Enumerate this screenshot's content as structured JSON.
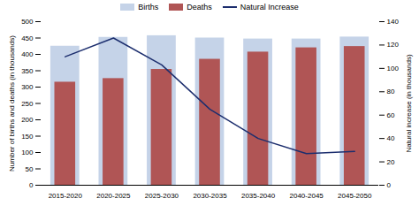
{
  "chart_data": {
    "type": "bar",
    "categories": [
      "2015-2020",
      "2020-2025",
      "2025-2030",
      "2030-2035",
      "2035-2040",
      "2040-2045",
      "2045-2050"
    ],
    "series": [
      {
        "name": "Births",
        "type": "bar",
        "color": "#c5d3e8",
        "values": [
          425,
          452,
          457,
          450,
          447,
          447,
          453
        ]
      },
      {
        "name": "Deaths",
        "type": "bar",
        "color": "#b05555",
        "values": [
          315,
          326,
          354,
          385,
          407,
          420,
          424
        ]
      },
      {
        "name": "Natural Increase",
        "type": "line",
        "axis": "y2",
        "color": "#1c2e6e",
        "values": [
          110,
          126,
          103,
          65,
          40,
          27,
          29
        ]
      }
    ],
    "ylabel": "Number of births and deaths (in thousands)",
    "y2label": "Natural increase (in thousands)",
    "ylim": [
      0,
      500
    ],
    "yticks": [
      0,
      50,
      100,
      150,
      200,
      250,
      300,
      350,
      400,
      450,
      500
    ],
    "y2lim": [
      0,
      140
    ],
    "y2ticks": [
      0,
      20,
      40,
      60,
      80,
      100,
      120,
      140
    ],
    "legend": "top",
    "grid": false
  }
}
